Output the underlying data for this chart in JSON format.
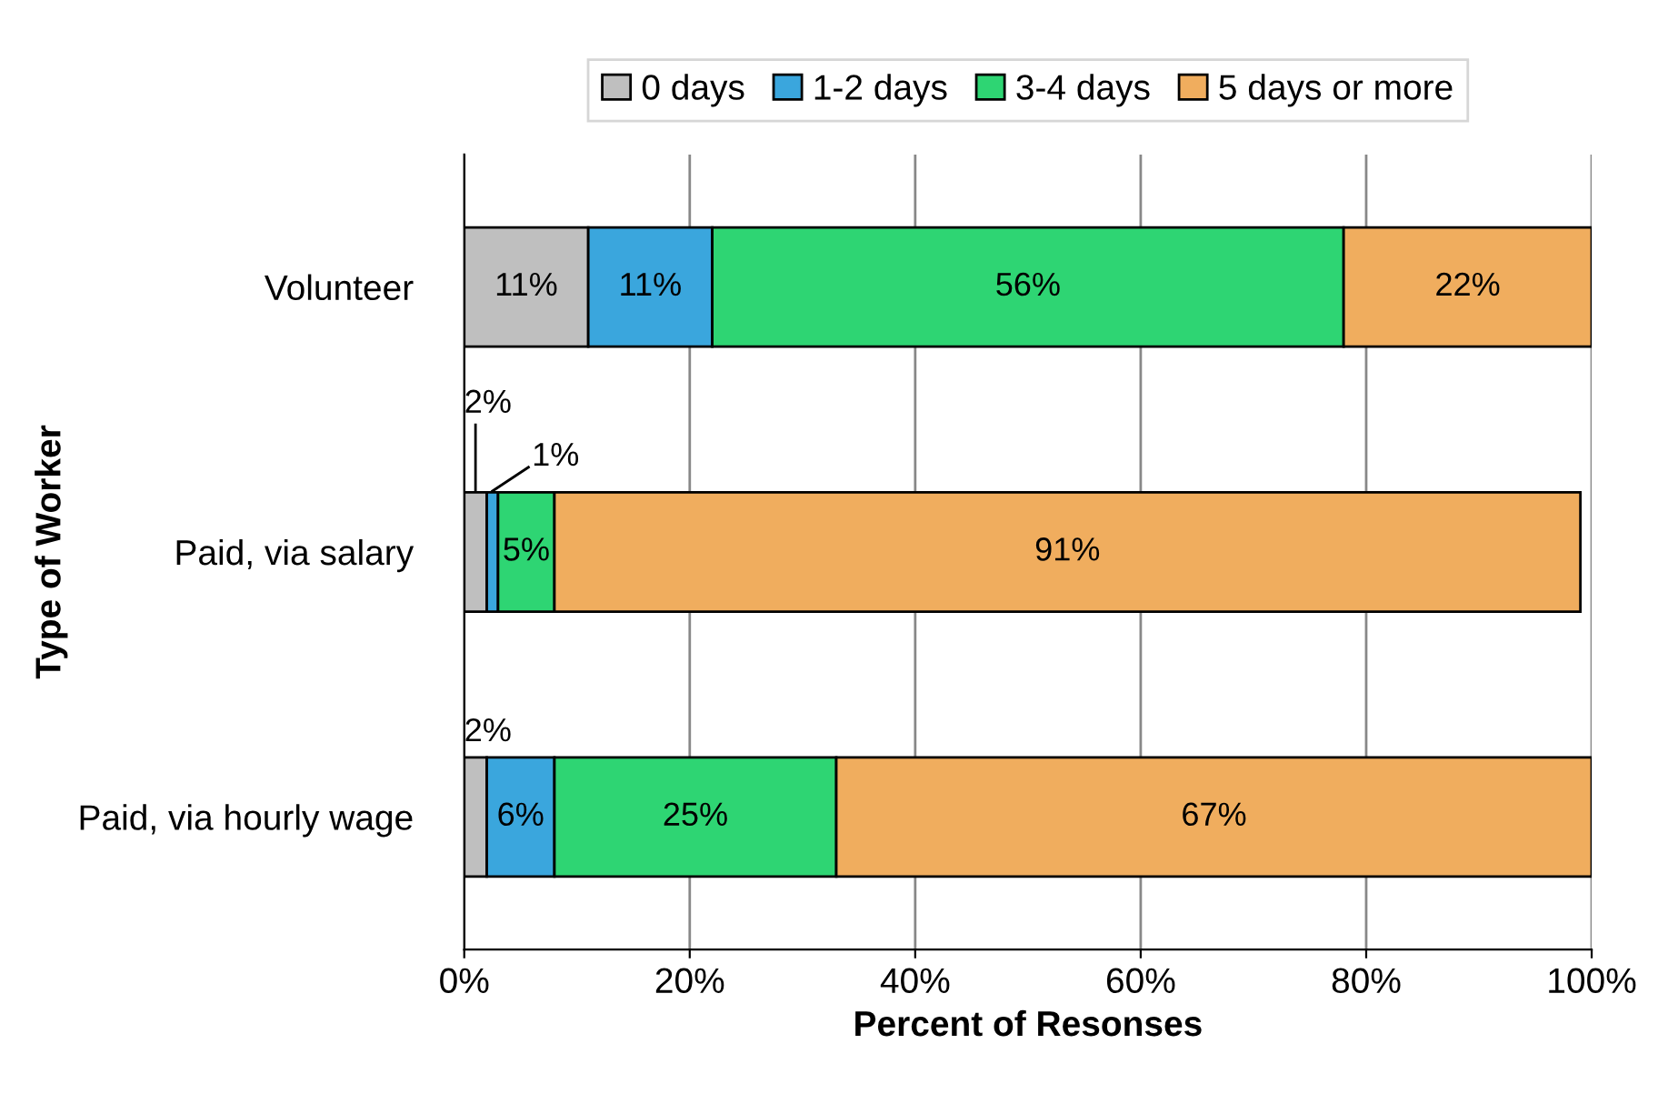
{
  "chart_data": {
    "type": "bar",
    "orientation": "horizontal",
    "stacked": true,
    "ylabel": "Type of Worker",
    "xlabel": "Percent of Resonses",
    "categories": [
      "Volunteer",
      "Paid, via salary",
      "Paid, via hourly wage"
    ],
    "series": [
      {
        "name": "0 days",
        "color": "#bfbfbf",
        "values": [
          11,
          2,
          2
        ],
        "value_labels": [
          "11%",
          "2%",
          "2%"
        ]
      },
      {
        "name": "1-2 days",
        "color": "#3aa6dd",
        "values": [
          11,
          1,
          6
        ],
        "value_labels": [
          "11%",
          "1%",
          "6%"
        ]
      },
      {
        "name": "3-4 days",
        "color": "#2ed573",
        "values": [
          56,
          5,
          25
        ],
        "value_labels": [
          "56%",
          "5%",
          "25%"
        ]
      },
      {
        "name": "5 days or more",
        "color": "#f0ad5e",
        "values": [
          22,
          91,
          67
        ],
        "value_labels": [
          "22%",
          "91%",
          "67%"
        ]
      }
    ],
    "xlim": [
      0,
      100
    ],
    "xticks": [
      {
        "value": 0,
        "label": "0%"
      },
      {
        "value": 20,
        "label": "20%"
      },
      {
        "value": 40,
        "label": "40%"
      },
      {
        "value": 60,
        "label": "60%"
      },
      {
        "value": 80,
        "label": "80%"
      },
      {
        "value": 100,
        "label": "100%"
      }
    ],
    "grid": "x",
    "legend": "top"
  }
}
